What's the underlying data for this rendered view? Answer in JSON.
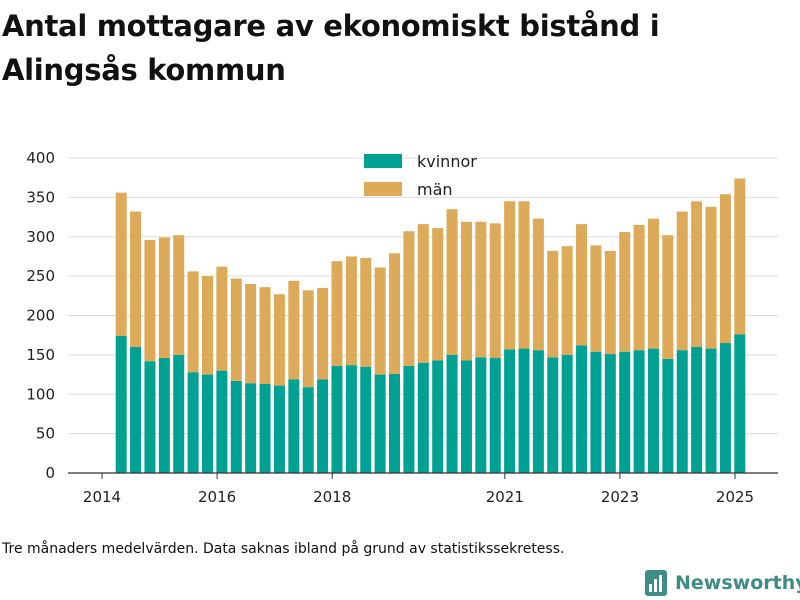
{
  "header": {
    "title": "Antal mottagare av ekonomiskt bistånd i Alingsås kommun"
  },
  "footer": {
    "note": "Tre månaders medelvärden. Data saknas ibland på grund av statistikssekretess.",
    "brand": "Newsworthy"
  },
  "colors": {
    "kvinnor": "#00a093",
    "man": "#dcaa58",
    "grid": "#dddddd",
    "axis": "#333333",
    "brand": "#3f8c87"
  },
  "chart_data": {
    "type": "bar",
    "stacked": true,
    "title": "Antal mottagare av ekonomiskt bistånd i Alingsås kommun",
    "xlabel": "",
    "ylabel": "",
    "ylim": [
      0,
      400
    ],
    "yticks": [
      0,
      50,
      100,
      150,
      200,
      250,
      300,
      350,
      400
    ],
    "xticks": [
      "2014",
      "2016",
      "2018",
      "2021",
      "2023",
      "2025"
    ],
    "legend_position": "top-center",
    "grid": true,
    "x_start": "2014-05",
    "x": [
      "2014-05",
      "2014-08",
      "2014-11",
      "2015-02",
      "2015-05",
      "2015-08",
      "2015-11",
      "2016-02",
      "2016-05",
      "2016-08",
      "2016-11",
      "2017-02",
      "2017-05",
      "2017-08",
      "2017-11",
      "2018-02",
      "2018-05",
      "2018-08",
      "2018-11",
      "2019-02",
      "2019-05",
      "2019-08",
      "2019-11",
      "2020-02",
      "2020-05",
      "2020-08",
      "2020-11",
      "2021-02",
      "2021-05",
      "2021-08",
      "2021-11",
      "2022-02",
      "2022-05",
      "2022-08",
      "2022-11",
      "2023-02",
      "2023-05",
      "2023-08",
      "2023-11",
      "2024-02",
      "2024-05",
      "2024-08",
      "2024-11",
      "2025-02"
    ],
    "series": [
      {
        "name": "kvinnor",
        "values": [
          174,
          160,
          142,
          146,
          150,
          128,
          125,
          130,
          117,
          114,
          113,
          111,
          119,
          109,
          119,
          136,
          137,
          135,
          125,
          126,
          136,
          140,
          143,
          150,
          143,
          147,
          146,
          157,
          158,
          156,
          147,
          150,
          162,
          154,
          151,
          154,
          156,
          158,
          145,
          156,
          160,
          158,
          165,
          176
        ]
      },
      {
        "name": "män",
        "values": [
          182,
          172,
          154,
          153,
          152,
          128,
          125,
          132,
          130,
          126,
          123,
          116,
          125,
          123,
          116,
          133,
          138,
          138,
          136,
          153,
          171,
          176,
          168,
          185,
          176,
          172,
          171,
          188,
          187,
          167,
          135,
          138,
          154,
          135,
          131,
          152,
          159,
          165,
          157,
          176,
          185,
          180,
          189,
          198
        ]
      }
    ]
  }
}
